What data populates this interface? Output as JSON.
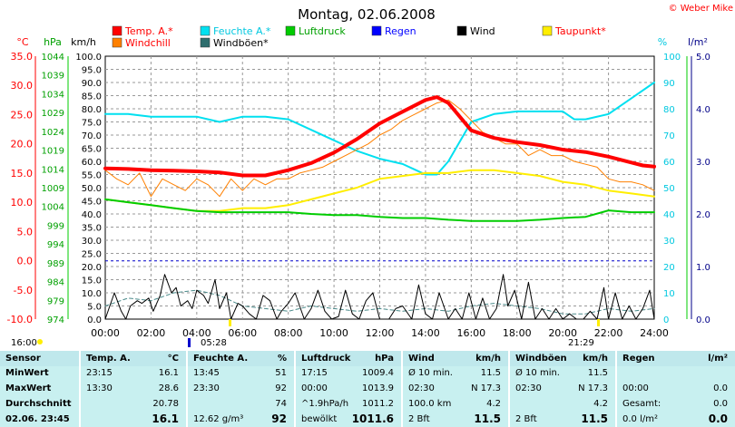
{
  "header": {
    "title": "Montag, 02.06.2008",
    "credit": "© Weber Mike"
  },
  "legend": [
    {
      "label": "Temp. A.*",
      "color": "#ff0000",
      "text_color": "#ff0000"
    },
    {
      "label": "Windchill",
      "color": "#ff8000",
      "text_color": "#ff0000"
    },
    {
      "label": "Feuchte A.*",
      "color": "#00e0f0",
      "text_color": "#00c8e0"
    },
    {
      "label": "Windböen*",
      "color": "#2e6e6e",
      "text_color": "#000000"
    },
    {
      "label": "Luftdruck",
      "color": "#00cc00",
      "text_color": "#00a000"
    },
    {
      "label": "Regen",
      "color": "#0000ff",
      "text_color": "#0000ff"
    },
    {
      "label": "Wind",
      "color": "#000000",
      "text_color": "#000000"
    },
    {
      "label": "Taupunkt*",
      "color": "#ffee00",
      "text_color": "#ff0000"
    }
  ],
  "axes": {
    "temp_unit": "°C",
    "press_unit": "hPa",
    "wind_unit": "km/h",
    "hum_unit": "%",
    "rain_unit": "l/m²",
    "temp_ticks": [
      "35.0",
      "30.0",
      "25.0",
      "20.0",
      "15.0",
      "10.0",
      "5.0",
      "0.0",
      "-5.0",
      "-10.0"
    ],
    "press_ticks": [
      "1044",
      "1039",
      "1034",
      "1029",
      "1024",
      "1019",
      "1014",
      "1009",
      "1004",
      "999",
      "994",
      "989",
      "984",
      "979",
      "974"
    ],
    "wind_ticks": [
      "100.0",
      "95.0",
      "90.0",
      "85.0",
      "80.0",
      "75.0",
      "70.0",
      "65.0",
      "60.0",
      "55.0",
      "50.0",
      "45.0",
      "40.0",
      "35.0",
      "30.0",
      "25.0",
      "20.0",
      "15.0",
      "10.0",
      "5.0",
      "0.0"
    ],
    "hum_ticks": [
      "100",
      "90",
      "80",
      "70",
      "60",
      "50",
      "40",
      "30",
      "20",
      "10",
      "0"
    ],
    "rain_ticks": [
      "5.0",
      "4.0",
      "3.0",
      "2.0",
      "1.0",
      "0.0"
    ],
    "x_ticks": [
      "00:00",
      "02:00",
      "04:00",
      "06:00",
      "08:00",
      "10:00",
      "12:00",
      "14:00",
      "16:00",
      "18:00",
      "20:00",
      "22:00",
      "24:00"
    ]
  },
  "sun": {
    "sunrise": "05:28",
    "sunset": "21:29",
    "left_time": "16:00"
  },
  "chart_data": {
    "type": "line",
    "x_range": [
      0,
      24
    ],
    "ylim_temp": [
      -10,
      35
    ],
    "ylim_hum": [
      0,
      100
    ],
    "ylim_wind": [
      0,
      100
    ],
    "series": [
      {
        "name": "Feuchte A.*",
        "color": "#00e0f0",
        "axis": "hum",
        "width": 2,
        "x": [
          0,
          1,
          2,
          3,
          4,
          5,
          6,
          7,
          8,
          9,
          10,
          11,
          12,
          13,
          13.5,
          14,
          14.5,
          15,
          16,
          17,
          18,
          19,
          20,
          20.5,
          21,
          22,
          23,
          24
        ],
        "y": [
          78,
          78,
          77,
          77,
          77,
          75,
          77,
          77,
          76,
          72,
          68,
          64,
          61,
          59,
          57,
          55,
          55,
          60,
          75,
          78,
          79,
          79,
          79,
          76,
          76,
          78,
          84,
          90
        ]
      },
      {
        "name": "Taupunkt*",
        "color": "#ffee00",
        "axis": "temp",
        "width": 2,
        "x": [
          0,
          1,
          2,
          3,
          4,
          5,
          6,
          7,
          8,
          9,
          10,
          11,
          12,
          13,
          14,
          15,
          16,
          17,
          18,
          19,
          20,
          21,
          22,
          23,
          24
        ],
        "y": [
          10.5,
          10.0,
          9.5,
          9.0,
          8.5,
          8.5,
          9.0,
          9.0,
          9.5,
          10.5,
          11.5,
          12.5,
          14.0,
          14.5,
          15.0,
          15.0,
          15.5,
          15.5,
          15.0,
          14.5,
          13.5,
          13.0,
          12.0,
          11.5,
          11.0
        ]
      },
      {
        "name": "Luftdruck",
        "color": "#00cc00",
        "axis": "temp",
        "width": 2,
        "x": [
          0,
          1,
          2,
          3,
          4,
          5,
          6,
          7,
          8,
          9,
          10,
          11,
          12,
          13,
          14,
          15,
          16,
          17,
          18,
          19,
          20,
          21,
          22,
          23,
          24
        ],
        "y": [
          10.5,
          10.0,
          9.5,
          9.0,
          8.5,
          8.3,
          8.3,
          8.3,
          8.3,
          8.0,
          7.8,
          7.8,
          7.5,
          7.3,
          7.3,
          7.0,
          6.8,
          6.8,
          6.8,
          7.0,
          7.3,
          7.5,
          8.6,
          8.3,
          8.3
        ]
      },
      {
        "name": "Windchill",
        "color": "#ff8000",
        "axis": "temp",
        "width": 1,
        "x": [
          0,
          0.5,
          1,
          1.5,
          2,
          2.5,
          3,
          3.5,
          4,
          4.5,
          5,
          5.5,
          6,
          6.5,
          7,
          7.5,
          8,
          8.5,
          9,
          9.5,
          10,
          10.5,
          11,
          11.5,
          12,
          12.5,
          13,
          13.5,
          14,
          14.5,
          15,
          15.5,
          16,
          16.5,
          17,
          17.5,
          18,
          18.5,
          19,
          19.5,
          20,
          20.5,
          21,
          21.5,
          22,
          22.5,
          23,
          23.5,
          24
        ],
        "y": [
          15.5,
          14,
          13,
          15,
          11,
          14,
          13,
          12,
          14,
          13,
          11,
          14,
          12,
          14,
          13,
          14,
          14,
          15,
          15.5,
          16,
          17,
          18,
          19,
          20,
          21.5,
          22.5,
          24,
          25,
          26,
          27,
          27.5,
          26,
          24,
          22,
          21,
          20,
          20,
          18,
          19,
          18,
          18,
          17,
          16.5,
          16,
          14,
          13.5,
          13.5,
          13,
          12
        ]
      },
      {
        "name": "Temp. A.*",
        "color": "#ff0000",
        "axis": "temp",
        "width": 4,
        "x": [
          0,
          1,
          2,
          3,
          4,
          5,
          6,
          7,
          8,
          9,
          10,
          11,
          12,
          13,
          14,
          14.5,
          15,
          16,
          17,
          18,
          19,
          20,
          21,
          22,
          23,
          23.5,
          24
        ],
        "y": [
          15.8,
          15.7,
          15.5,
          15.4,
          15.3,
          15.1,
          14.6,
          14.6,
          15.5,
          16.7,
          18.5,
          20.8,
          23.5,
          25.5,
          27.5,
          28.0,
          27.0,
          22.3,
          21.0,
          20.3,
          19.8,
          19.0,
          18.6,
          17.8,
          16.8,
          16.3,
          16.1
        ]
      },
      {
        "name": "Windböen*",
        "color": "#4a8a8a",
        "axis": "wind",
        "width": 1,
        "dash": true,
        "x": [
          0,
          1,
          2,
          3,
          4,
          5,
          6,
          7,
          8,
          9,
          10,
          11,
          12,
          13,
          14,
          15,
          16,
          17,
          18,
          19,
          20,
          21,
          22,
          23,
          24
        ],
        "y": [
          5,
          8,
          7,
          10,
          11,
          9,
          5,
          4,
          3,
          5,
          4,
          3,
          4,
          3,
          4,
          3,
          5,
          6,
          5,
          4,
          2,
          2,
          4,
          3,
          4
        ]
      },
      {
        "name": "Wind",
        "color": "#000000",
        "axis": "wind",
        "width": 1,
        "x": [
          0,
          0.2,
          0.4,
          0.7,
          0.9,
          1.1,
          1.4,
          1.6,
          1.9,
          2.1,
          2.4,
          2.6,
          2.9,
          3.1,
          3.3,
          3.6,
          3.8,
          4.0,
          4.3,
          4.5,
          4.8,
          5.0,
          5.3,
          5.5,
          5.8,
          6.0,
          6.3,
          6.6,
          6.9,
          7.2,
          7.5,
          7.7,
          8.0,
          8.3,
          8.7,
          9.0,
          9.3,
          9.6,
          9.9,
          10.2,
          10.5,
          10.8,
          11.1,
          11.4,
          11.7,
          12.0,
          12.4,
          12.7,
          13.0,
          13.4,
          13.7,
          14.0,
          14.3,
          14.6,
          15.0,
          15.3,
          15.6,
          15.9,
          16.2,
          16.5,
          16.8,
          17.1,
          17.4,
          17.6,
          17.9,
          18.2,
          18.5,
          18.8,
          19.1,
          19.4,
          19.7,
          20.0,
          20.3,
          20.6,
          20.9,
          21.2,
          21.5,
          21.8,
          22.0,
          22.3,
          22.6,
          22.9,
          23.2,
          23.5,
          23.8,
          24.0
        ],
        "y": [
          0,
          5,
          10,
          3,
          0,
          5,
          7,
          6,
          8,
          3,
          9,
          17,
          10,
          12,
          5,
          7,
          4,
          11,
          9,
          6,
          15,
          4,
          10,
          0,
          6,
          5,
          2,
          0,
          9,
          7,
          0,
          3,
          6,
          10,
          0,
          4,
          11,
          3,
          0,
          1,
          11,
          2,
          0,
          7,
          10,
          0,
          0,
          4,
          5,
          0,
          13,
          2,
          0,
          10,
          0,
          4,
          0,
          10,
          0,
          8,
          0,
          4,
          17,
          5,
          11,
          0,
          14,
          0,
          4,
          0,
          4,
          0,
          2,
          0,
          0,
          3,
          0,
          12,
          0,
          10,
          0,
          5,
          0,
          4,
          11,
          0
        ]
      }
    ]
  },
  "table": [
    {
      "head": [
        "Sensor",
        ""
      ],
      "rows": [
        [
          "MinWert",
          ""
        ],
        [
          "MaxWert",
          ""
        ],
        [
          "Durchschnitt",
          ""
        ],
        [
          "02.06. 23:45",
          ""
        ]
      ]
    },
    {
      "head": [
        "Temp. A.",
        "°C"
      ],
      "rows": [
        [
          "23:15",
          "16.1"
        ],
        [
          "13:30",
          "28.6"
        ],
        [
          "",
          "20.78"
        ],
        [
          "",
          "16.1"
        ]
      ]
    },
    {
      "head": [
        "Feuchte A.",
        "%"
      ],
      "rows": [
        [
          "13:45",
          "51"
        ],
        [
          "23:30",
          "92"
        ],
        [
          "",
          "74"
        ],
        [
          "12.62 g/m³",
          "92"
        ]
      ]
    },
    {
      "head": [
        "Luftdruck",
        "hPa"
      ],
      "rows": [
        [
          "17:15",
          "1009.4"
        ],
        [
          "00:00",
          "1013.9"
        ],
        [
          "^1.9hPa/h",
          "1011.2"
        ],
        [
          "bewölkt",
          "1011.6"
        ]
      ]
    },
    {
      "head": [
        "Wind",
        "km/h"
      ],
      "rows": [
        [
          "Ø 10 min.",
          "11.5"
        ],
        [
          "02:30",
          "N 17.3"
        ],
        [
          "100.0 km",
          "4.2"
        ],
        [
          "2 Bft",
          "11.5"
        ]
      ]
    },
    {
      "head": [
        "Windböen",
        "km/h"
      ],
      "rows": [
        [
          "Ø 10 min.",
          "11.5"
        ],
        [
          "02:30",
          "N 17.3"
        ],
        [
          "",
          "4.2"
        ],
        [
          "2 Bft",
          "11.5"
        ]
      ]
    },
    {
      "head": [
        "Regen",
        "l/m²"
      ],
      "rows": [
        [
          "",
          ""
        ],
        [
          "00:00",
          "0.0"
        ],
        [
          "Gesamt:",
          "0.0"
        ],
        [
          "0.0 l/m²",
          "0.0"
        ]
      ]
    }
  ]
}
